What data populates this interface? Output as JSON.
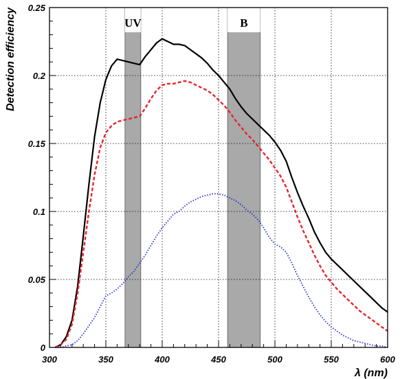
{
  "chart_data": {
    "type": "line",
    "xlabel": "λ (nm)",
    "ylabel": "Detection efficiency",
    "xlim": [
      300,
      600
    ],
    "ylim": [
      0,
      0.25
    ],
    "x_ticks": [
      "300",
      "350",
      "400",
      "450",
      "500",
      "550",
      "600"
    ],
    "y_ticks": [
      "0",
      "0.05",
      "0.1",
      "0.15",
      "0.2",
      "0.25"
    ],
    "grid": true,
    "bands": [
      {
        "label": "UV",
        "from": 367,
        "to": 381
      },
      {
        "label": "B",
        "from": 458,
        "to": 487
      }
    ],
    "series": [
      {
        "color": "#000000",
        "style": "solid",
        "x": [
          305,
          310,
          315,
          320,
          325,
          330,
          335,
          340,
          345,
          350,
          355,
          360,
          365,
          370,
          375,
          380,
          385,
          390,
          395,
          400,
          405,
          410,
          415,
          420,
          425,
          430,
          435,
          440,
          445,
          450,
          455,
          460,
          465,
          470,
          475,
          480,
          485,
          490,
          495,
          500,
          505,
          510,
          515,
          520,
          525,
          530,
          535,
          540,
          545,
          550,
          555,
          560,
          565,
          570,
          575,
          580,
          585,
          590,
          595,
          600
        ],
        "y": [
          0,
          0.002,
          0.008,
          0.02,
          0.045,
          0.082,
          0.12,
          0.155,
          0.18,
          0.197,
          0.207,
          0.212,
          0.211,
          0.21,
          0.209,
          0.208,
          0.214,
          0.219,
          0.224,
          0.227,
          0.225,
          0.223,
          0.223,
          0.222,
          0.219,
          0.216,
          0.213,
          0.209,
          0.204,
          0.2,
          0.195,
          0.19,
          0.183,
          0.177,
          0.172,
          0.168,
          0.164,
          0.16,
          0.156,
          0.151,
          0.145,
          0.137,
          0.125,
          0.114,
          0.104,
          0.095,
          0.085,
          0.077,
          0.07,
          0.065,
          0.061,
          0.057,
          0.053,
          0.049,
          0.045,
          0.041,
          0.037,
          0.033,
          0.029,
          0.026
        ]
      },
      {
        "color": "#e8242b",
        "style": "dashed",
        "x": [
          305,
          310,
          315,
          320,
          325,
          330,
          335,
          340,
          345,
          350,
          355,
          360,
          365,
          370,
          375,
          380,
          385,
          390,
          395,
          400,
          405,
          410,
          415,
          420,
          425,
          430,
          435,
          440,
          445,
          450,
          455,
          460,
          465,
          470,
          475,
          480,
          485,
          490,
          495,
          500,
          505,
          510,
          515,
          520,
          525,
          530,
          535,
          540,
          545,
          550,
          555,
          560,
          565,
          570,
          575,
          580,
          585,
          590,
          595,
          600
        ],
        "y": [
          0,
          0.002,
          0.006,
          0.017,
          0.04,
          0.07,
          0.1,
          0.127,
          0.147,
          0.158,
          0.163,
          0.166,
          0.167,
          0.168,
          0.169,
          0.17,
          0.176,
          0.183,
          0.189,
          0.193,
          0.194,
          0.194,
          0.195,
          0.196,
          0.195,
          0.193,
          0.191,
          0.189,
          0.186,
          0.182,
          0.178,
          0.173,
          0.167,
          0.162,
          0.157,
          0.153,
          0.148,
          0.143,
          0.138,
          0.132,
          0.126,
          0.118,
          0.107,
          0.096,
          0.086,
          0.077,
          0.068,
          0.06,
          0.053,
          0.048,
          0.043,
          0.039,
          0.035,
          0.031,
          0.027,
          0.024,
          0.021,
          0.018,
          0.015,
          0.012
        ]
      },
      {
        "color": "#2233cc",
        "style": "dotted",
        "x": [
          305,
          310,
          315,
          320,
          325,
          330,
          335,
          340,
          345,
          350,
          355,
          360,
          365,
          370,
          375,
          380,
          385,
          390,
          395,
          400,
          405,
          410,
          415,
          420,
          425,
          430,
          435,
          440,
          445,
          450,
          455,
          460,
          465,
          470,
          475,
          480,
          485,
          490,
          495,
          500,
          505,
          510,
          515,
          520,
          525,
          530,
          535,
          540,
          545,
          550,
          555,
          560,
          565,
          570,
          575,
          580,
          585,
          590,
          595,
          600
        ],
        "y": [
          0,
          0.0,
          0.001,
          0.002,
          0.005,
          0.01,
          0.016,
          0.022,
          0.03,
          0.038,
          0.04,
          0.043,
          0.047,
          0.052,
          0.056,
          0.062,
          0.068,
          0.075,
          0.082,
          0.088,
          0.093,
          0.098,
          0.1,
          0.104,
          0.107,
          0.109,
          0.111,
          0.112,
          0.113,
          0.113,
          0.112,
          0.11,
          0.108,
          0.105,
          0.101,
          0.098,
          0.094,
          0.088,
          0.081,
          0.076,
          0.074,
          0.07,
          0.062,
          0.053,
          0.045,
          0.037,
          0.03,
          0.024,
          0.019,
          0.015,
          0.012,
          0.009,
          0.007,
          0.005,
          0.004,
          0.003,
          0.002,
          0.001,
          0.001,
          0.0
        ]
      }
    ]
  }
}
